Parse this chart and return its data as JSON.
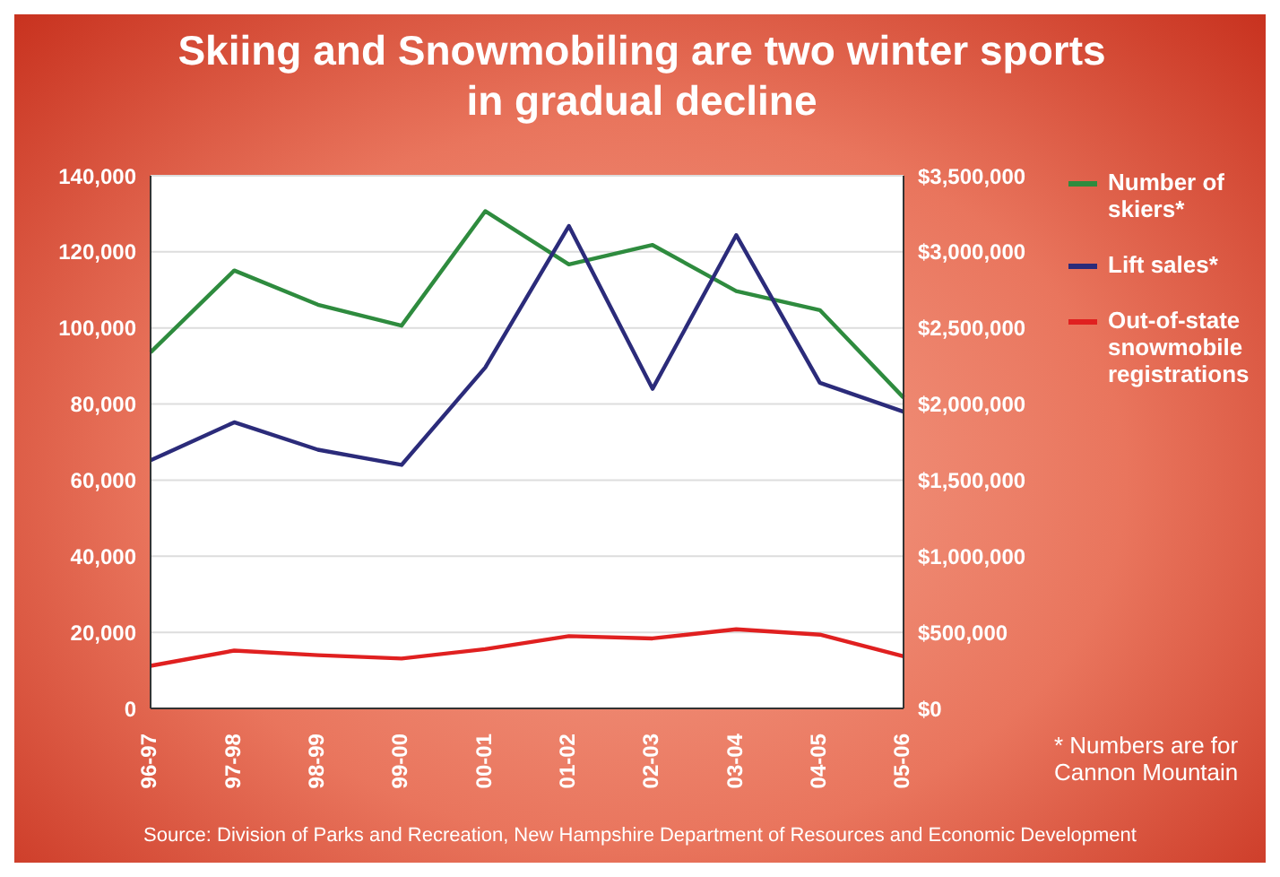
{
  "chart_data": {
    "type": "line",
    "title": "Skiing and Snowmobiling are two winter sports in gradual decline",
    "categories": [
      "96-97",
      "97-98",
      "98-99",
      "99-00",
      "00-01",
      "01-02",
      "02-03",
      "03-04",
      "04-05",
      "05-06"
    ],
    "series": [
      {
        "name": "Number of skiers*",
        "color": "#2e8b3e",
        "values": [
          93600,
          115100,
          106100,
          100600,
          130700,
          116700,
          121800,
          109700,
          104700,
          81700
        ]
      },
      {
        "name": "Lift sales*",
        "color": "#2b2b7a",
        "axis": "y2",
        "values": [
          1630000,
          1880000,
          1700000,
          1600000,
          2240000,
          3170000,
          2100000,
          3110000,
          2140000,
          1950000
        ]
      },
      {
        "name": "Out-of-state snowmobile registrations",
        "color": "#e02020",
        "values": [
          11200,
          15200,
          14000,
          13100,
          15600,
          19000,
          18400,
          20800,
          19400,
          13700
        ]
      }
    ],
    "ylim": [
      0,
      140000
    ],
    "yticks": [
      {
        "value": 0,
        "label": "0"
      },
      {
        "value": 20000,
        "label": "20,000"
      },
      {
        "value": 40000,
        "label": "40,000"
      },
      {
        "value": 60000,
        "label": "60,000"
      },
      {
        "value": 80000,
        "label": "80,000"
      },
      {
        "value": 100000,
        "label": "100,000"
      },
      {
        "value": 120000,
        "label": "120,000"
      },
      {
        "value": 140000,
        "label": "140,000"
      }
    ],
    "y2lim": [
      0,
      3500000
    ],
    "y2ticks": [
      {
        "value": 0,
        "label": "$0"
      },
      {
        "value": 500000,
        "label": "$500,000"
      },
      {
        "value": 1000000,
        "label": "$1,000,000"
      },
      {
        "value": 1500000,
        "label": "$1,500,000"
      },
      {
        "value": 2000000,
        "label": "$2,000,000"
      },
      {
        "value": 2500000,
        "label": "$2,500,000"
      },
      {
        "value": 3000000,
        "label": "$3,000,000"
      },
      {
        "value": 3500000,
        "label": "$3,500,000"
      }
    ],
    "grid": "y",
    "legend": "right",
    "marker": "none",
    "line_style": "solid",
    "annotations": [
      "* Numbers are for Cannon Mountain",
      "Source: Division of Parks and Recreation, New Hampshire Department of Resources and Economic Development"
    ]
  }
}
